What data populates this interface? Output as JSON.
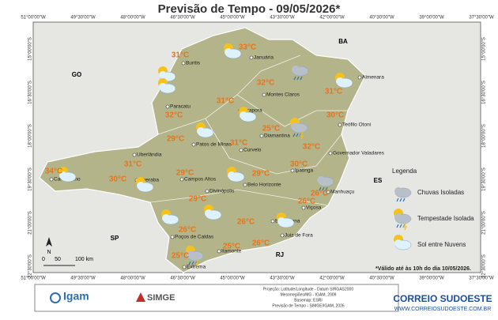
{
  "title": "Previsão de Tempo - 09/05/2026*",
  "lon_labels": [
    "51°00'00\"W",
    "49°30'00\"W",
    "48°00'00\"W",
    "46°30'00\"W",
    "45°00'00\"W",
    "43°30'00\"W",
    "42°00'00\"W",
    "40°30'00\"W",
    "39°00'00\"W",
    "37°30'00\"W"
  ],
  "lat_labels": [
    "15°00'00\"S",
    "16°30'00\"S",
    "18°00'00\"S",
    "19°30'00\"S",
    "21°00'00\"S",
    "22°30'00\"S"
  ],
  "states": [
    "GO",
    "BA",
    "ES",
    "SP",
    "RJ"
  ],
  "cities": [
    {
      "name": "Buritis",
      "temp": "31°C"
    },
    {
      "name": "Januária",
      "temp": "33°C"
    },
    {
      "name": "Almenara",
      "temp": "31°C"
    },
    {
      "name": "Montes Claros",
      "temp": "32°C"
    },
    {
      "name": "Paracatu",
      "temp": "32°C"
    },
    {
      "name": "Pirapora",
      "temp": "31°C"
    },
    {
      "name": "Diamantina",
      "temp": "25°C"
    },
    {
      "name": "Teófilo Otoni",
      "temp": "30°C"
    },
    {
      "name": "Patos de Minas",
      "temp": "29°C"
    },
    {
      "name": "Curvelo",
      "temp": "31°C"
    },
    {
      "name": "Governador Valadares",
      "temp": "32°C"
    },
    {
      "name": "Uberlândia",
      "temp": "31°C"
    },
    {
      "name": "Carneirinho",
      "temp": "34°C"
    },
    {
      "name": "Uberaba",
      "temp": "30°C"
    },
    {
      "name": "Campos Altos",
      "temp": "29°C"
    },
    {
      "name": "Ipatinga",
      "temp": "30°C"
    },
    {
      "name": "Belo Horizonte",
      "temp": "29°C"
    },
    {
      "name": "Manhuaçu",
      "temp": "26°C"
    },
    {
      "name": "Divinópolis",
      "temp": "29°C"
    },
    {
      "name": "Viçosa",
      "temp": "26°C"
    },
    {
      "name": "Barbacena",
      "temp": "26°C"
    },
    {
      "name": "Juiz de Fora",
      "temp": "26°C"
    },
    {
      "name": "Poços de Caldas",
      "temp": "26°C"
    },
    {
      "name": "Itamonte",
      "temp": "25°C"
    },
    {
      "name": "Extrema",
      "temp": "25°C"
    }
  ],
  "legend": {
    "title": "Legenda",
    "items": [
      "Chuvas Isoladas",
      "Tempestade Isolada",
      "Sol entre Nuvens"
    ]
  },
  "scale": [
    "0",
    "50",
    "100 km"
  ],
  "north": "N",
  "note": "*Válido até às 10h do dia 10/05/2026.",
  "footer": {
    "igam": "Igam",
    "simge": "SIMGE",
    "info": [
      "Projeção: Latitude/Longitude - Datum SIRGAS2000",
      "Mesorregiões/MG - IGAM, 2009",
      "Basemap: ESRI",
      "Previsão de Tempo - SIMGE/IGAM, 2026"
    ],
    "brand": "CORREIO SUDOESTE",
    "site": "WWW.CORREIOSUDOESTE.COM.BR"
  }
}
